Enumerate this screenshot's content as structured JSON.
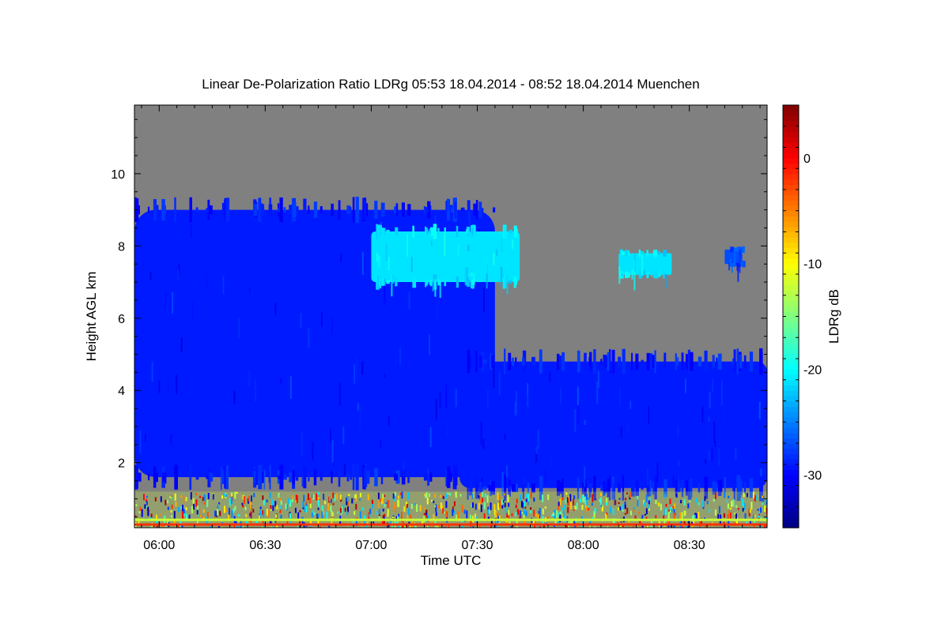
{
  "chart_data": {
    "type": "heatmap",
    "title": "Linear De-Polarization Ratio LDRg   05:53 18.04.2014 - 08:52 18.04.2014 Muenchen",
    "xlabel": "Time UTC",
    "ylabel": "Height AGL km",
    "xlim": [
      "05:53",
      "08:52"
    ],
    "ylim": [
      0.2,
      11.9
    ],
    "x_ticks": [
      "06:00",
      "06:30",
      "07:00",
      "07:30",
      "08:00",
      "08:30"
    ],
    "y_ticks": [
      2,
      4,
      6,
      8,
      10
    ],
    "colorbar": {
      "label": "LDRg dB",
      "range": [
        -35,
        5
      ],
      "ticks": [
        0,
        -10,
        -20,
        -30
      ],
      "colormap": "jet"
    },
    "background_color": "#808080",
    "features": [
      {
        "time": [
          "05:53",
          "07:35"
        ],
        "height_km": [
          1.6,
          9.0
        ],
        "ldr_db": -29
      },
      {
        "time": [
          "07:00",
          "07:42"
        ],
        "height_km": [
          7.0,
          8.4
        ],
        "ldr_db": -21
      },
      {
        "time": [
          "07:25",
          "08:52"
        ],
        "height_km": [
          1.3,
          4.8
        ],
        "ldr_db": -29
      },
      {
        "time": [
          "08:10",
          "08:25"
        ],
        "height_km": [
          7.2,
          7.8
        ],
        "ldr_db": -21
      },
      {
        "time": [
          "08:40",
          "08:45"
        ],
        "height_km": [
          7.5,
          7.9
        ],
        "ldr_db": -27
      },
      {
        "time": [
          "05:53",
          "08:52"
        ],
        "height_km": [
          0.2,
          1.2
        ],
        "ldr_db": -12
      }
    ]
  }
}
